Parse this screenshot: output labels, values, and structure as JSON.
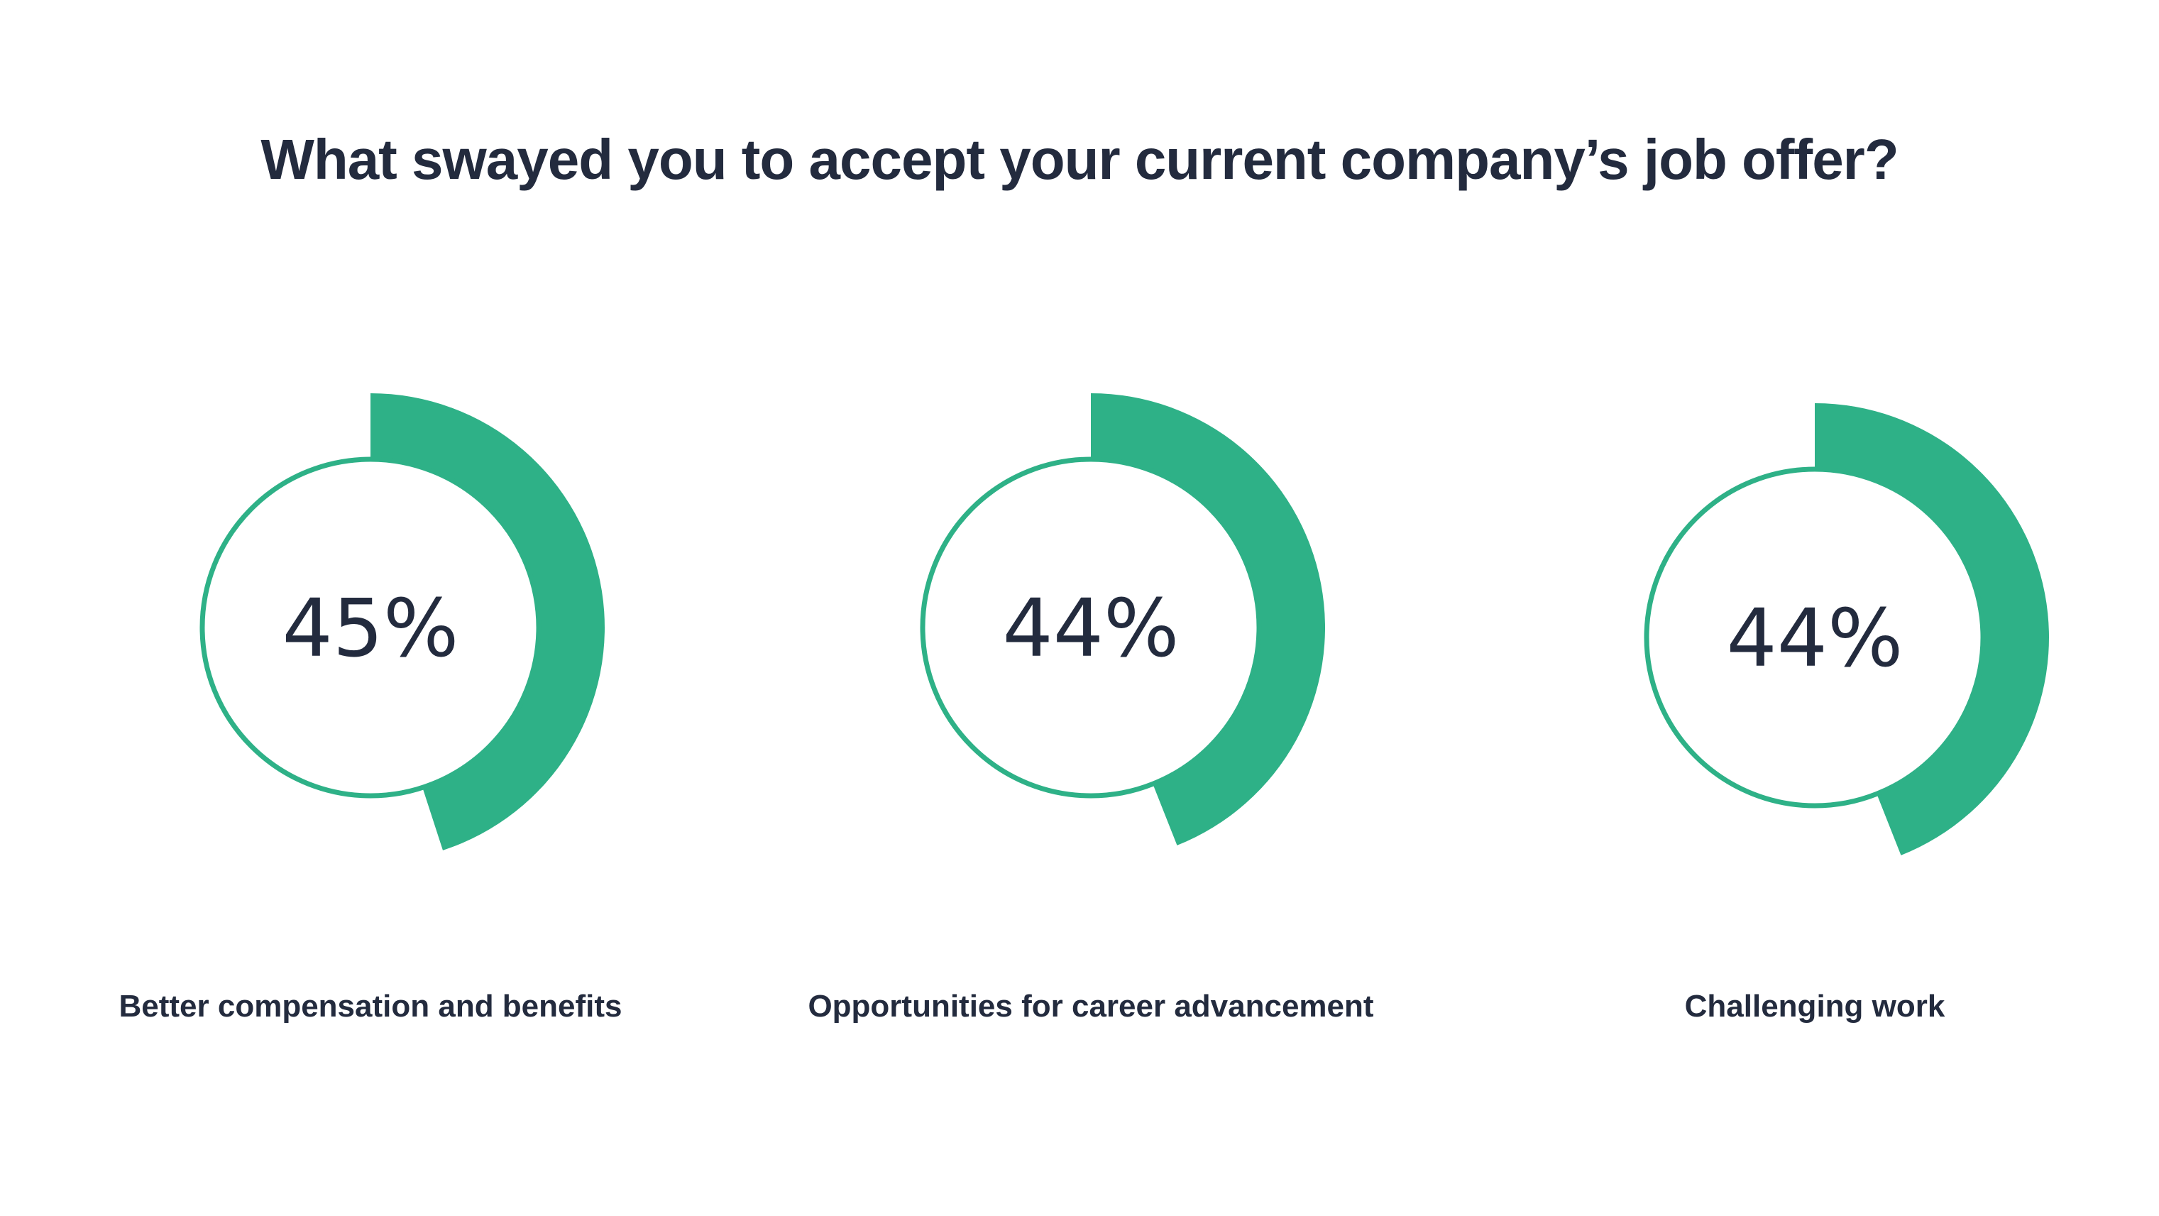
{
  "chart_data": {
    "type": "donut",
    "title": "What swayed you to accept your current company’s job offer?",
    "categories": [
      "Better compensation and benefits",
      "Opportunities for career advancement",
      "Challenging work"
    ],
    "values": [
      45,
      44,
      44
    ],
    "value_labels": [
      "45%",
      "44%",
      "44%"
    ],
    "unit": "%"
  },
  "colors": {
    "accent": "#2eb187",
    "text": "#232b3e",
    "background": "#ffffff"
  }
}
